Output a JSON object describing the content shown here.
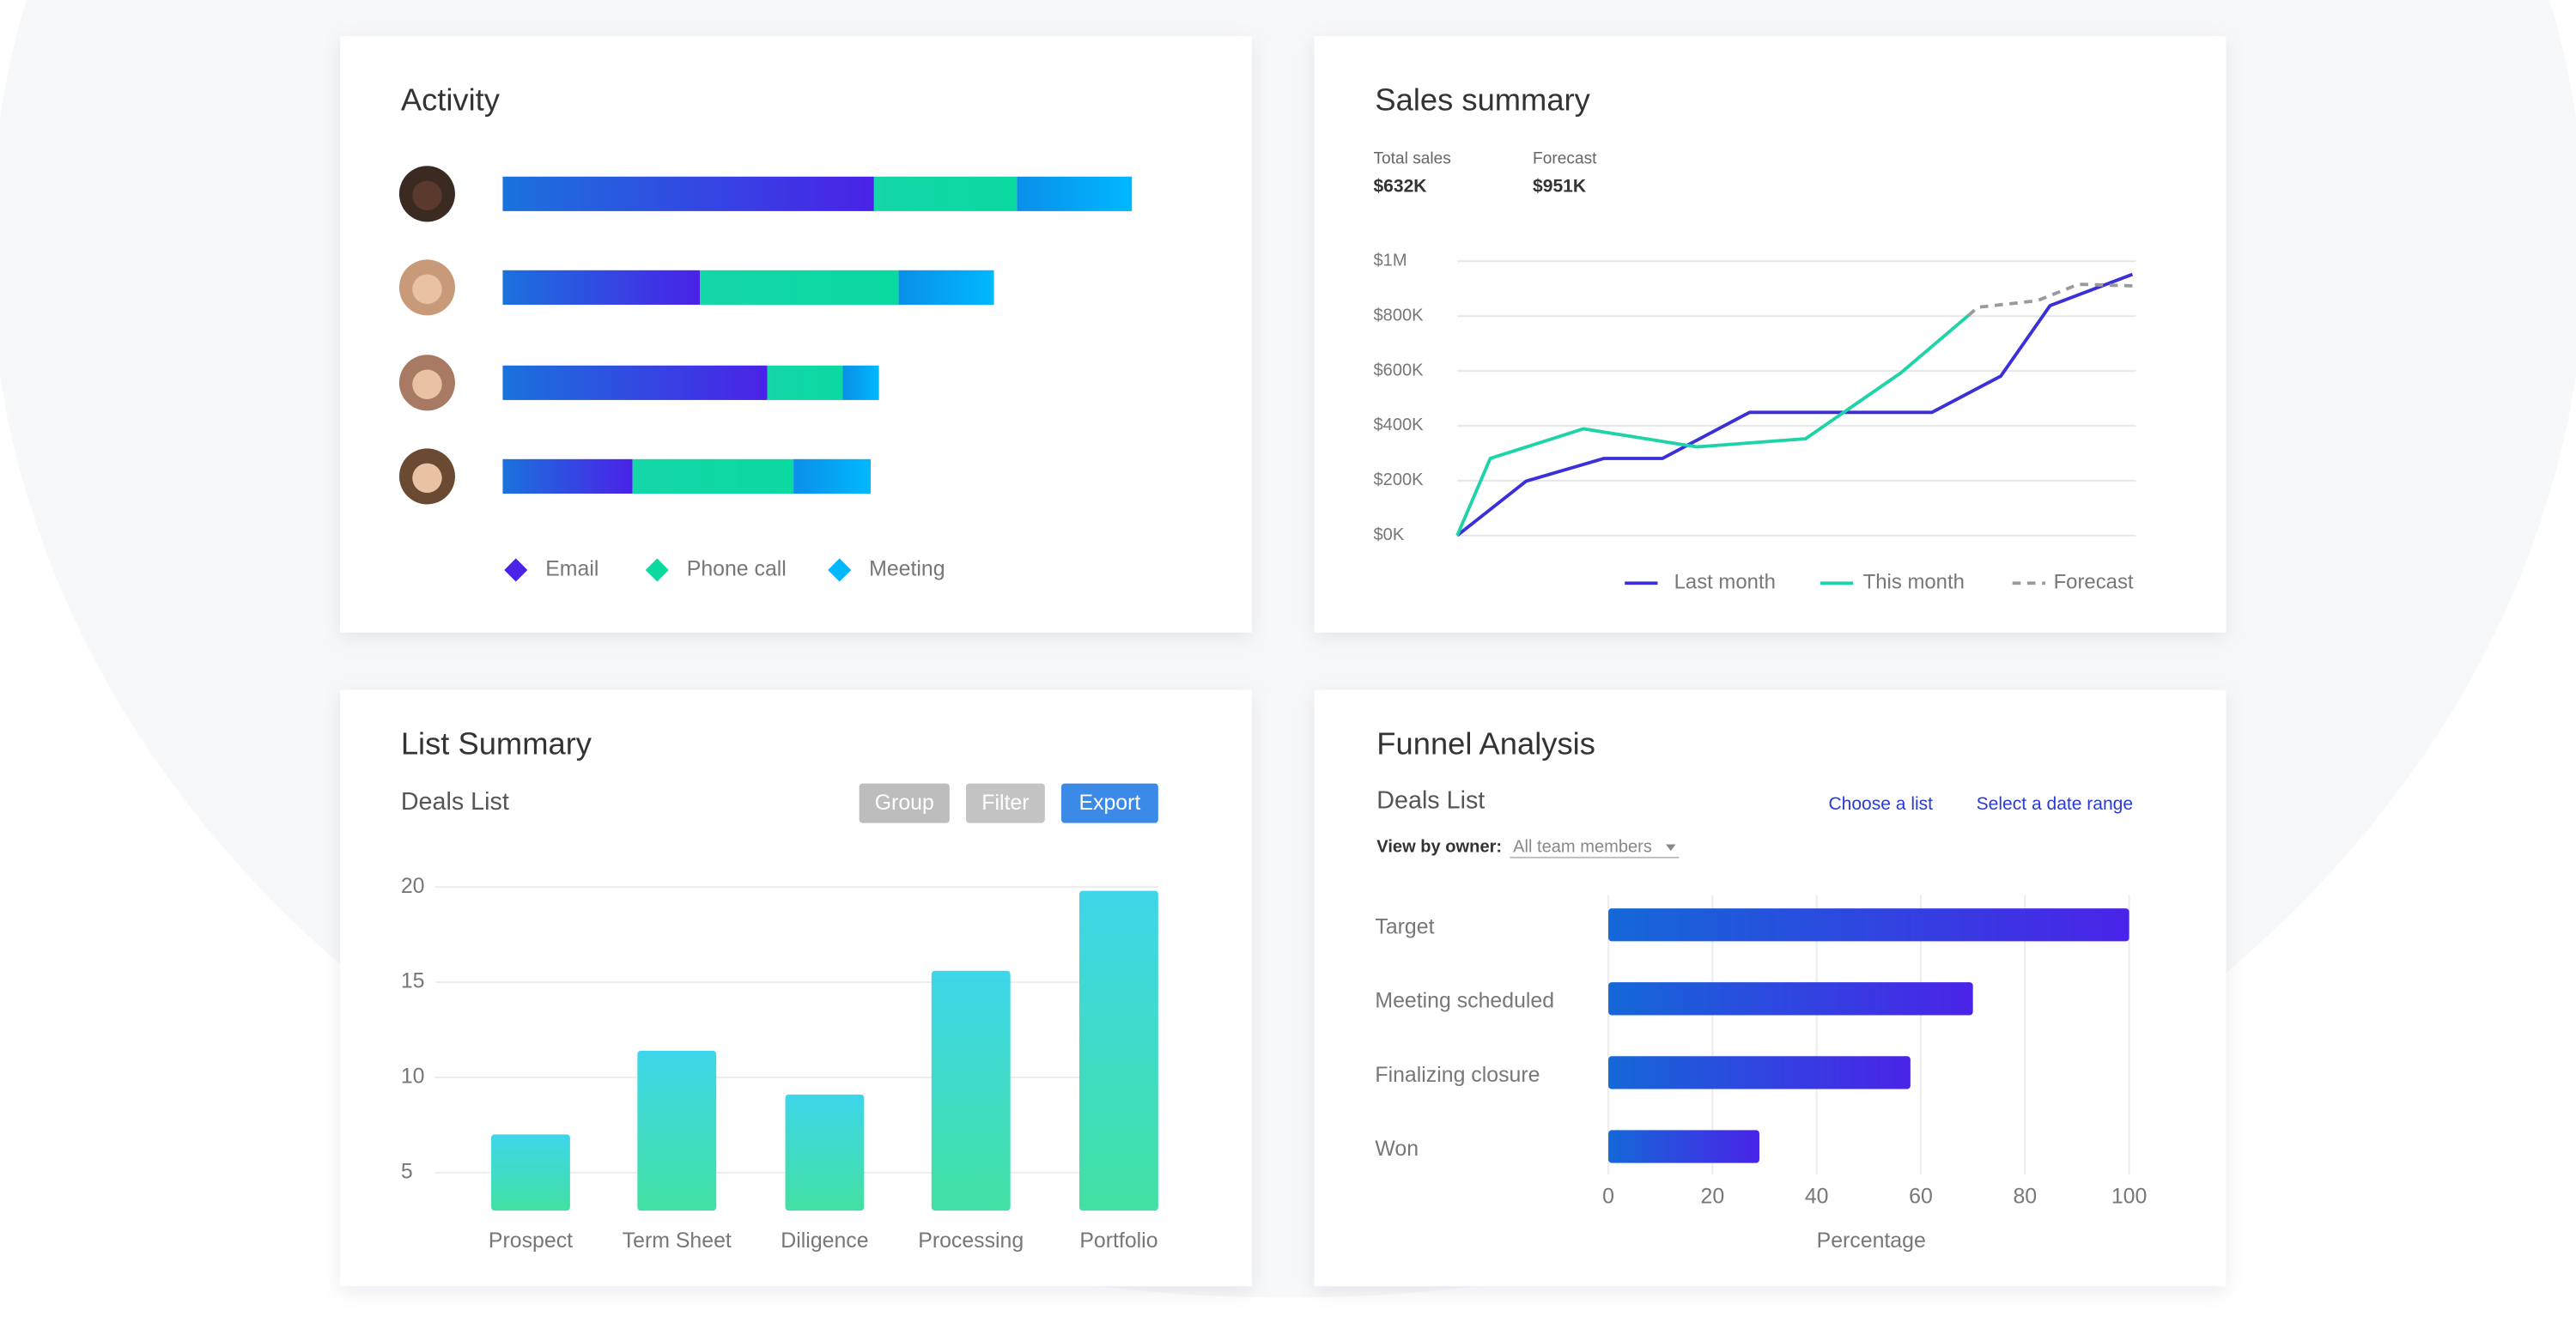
{
  "chart_data": [
    {
      "type": "stacked-bar-h",
      "title": "Activity",
      "categories": [
        null,
        null,
        null,
        null
      ],
      "series": [
        {
          "name": "Email",
          "color": [
            "#1a72dc",
            "#4a22e8"
          ],
          "values": [
            226,
            120,
            161,
            79
          ]
        },
        {
          "name": "Phone call",
          "color": [
            "#14d6a8",
            "#0ad9a0"
          ],
          "values": [
            87,
            121,
            46,
            98
          ]
        },
        {
          "name": "Meeting",
          "color": [
            "#0a8fe8",
            "#00b8ff"
          ],
          "values": [
            70,
            58,
            22,
            47
          ]
        }
      ]
    },
    {
      "type": "line",
      "title": "Sales summary",
      "stats": [
        {
          "label": "Total sales",
          "value": "$632K"
        },
        {
          "label": "Forecast",
          "value": "$951K"
        }
      ],
      "xlim": [
        0,
        100
      ],
      "ylim": [
        0,
        1000
      ],
      "yticks": [
        {
          "value": 0,
          "label": "$0K"
        },
        {
          "value": 200,
          "label": "$200K"
        },
        {
          "value": 400,
          "label": "$400K"
        },
        {
          "value": 600,
          "label": "$600K"
        },
        {
          "value": 800,
          "label": "$800K"
        },
        {
          "value": 1000,
          "label": "$1M"
        }
      ],
      "grid": true,
      "series": [
        {
          "name": "Last month",
          "color": "#3b2fd9",
          "dashed": false,
          "x": [
            0,
            10.2,
            21.7,
            30.4,
            43.3,
            55.5,
            70.3,
            80.5,
            87.8,
            100
          ],
          "values": [
            0,
            198,
            281,
            281,
            449,
            449,
            449,
            581,
            838,
            952
          ]
        },
        {
          "name": "This month",
          "color": "#1fd3a8",
          "dashed": false,
          "x": [
            0,
            4.9,
            18.7,
            35.5,
            51.6,
            65.7,
            75.7
          ],
          "values": [
            0,
            281,
            389,
            323,
            353,
            593,
            802
          ]
        },
        {
          "name": "Forecast",
          "color": "#9a9a9a",
          "dashed": true,
          "x": [
            75.7,
            77.1,
            85.9,
            92.0,
            100
          ],
          "values": [
            802,
            832,
            856,
            916,
            910
          ]
        }
      ]
    },
    {
      "type": "bar",
      "title": "List Summary",
      "subtitle": "Deals List",
      "buttons": [
        "Group",
        "Filter",
        "Export"
      ],
      "categories": [
        "Prospect",
        "Term Sheet",
        "Diligence",
        "Processing",
        "Portfolio"
      ],
      "values": [
        7,
        11.4,
        9.1,
        15.6,
        19.8
      ],
      "color": [
        "#3ed6ea",
        "#42e0a2"
      ],
      "ylim": [
        3,
        20
      ],
      "yticks": [
        5,
        10,
        15,
        20
      ],
      "grid": true
    },
    {
      "type": "bar-h",
      "title": "Funnel Analysis",
      "subtitle": "Deals List",
      "links": [
        "Choose a list",
        "Select a date range"
      ],
      "filter_label": "View by owner:",
      "filter_value": "All team members",
      "categories": [
        "Target",
        "Meeting scheduled",
        "Finalizing closure",
        "Won"
      ],
      "values": [
        100,
        70,
        58,
        29
      ],
      "color": [
        "#1468d8",
        "#4a23e8"
      ],
      "xlim": [
        0,
        100
      ],
      "xticks": [
        0,
        20,
        40,
        60,
        80,
        100
      ],
      "xlabel": "Percentage",
      "grid": true
    }
  ]
}
